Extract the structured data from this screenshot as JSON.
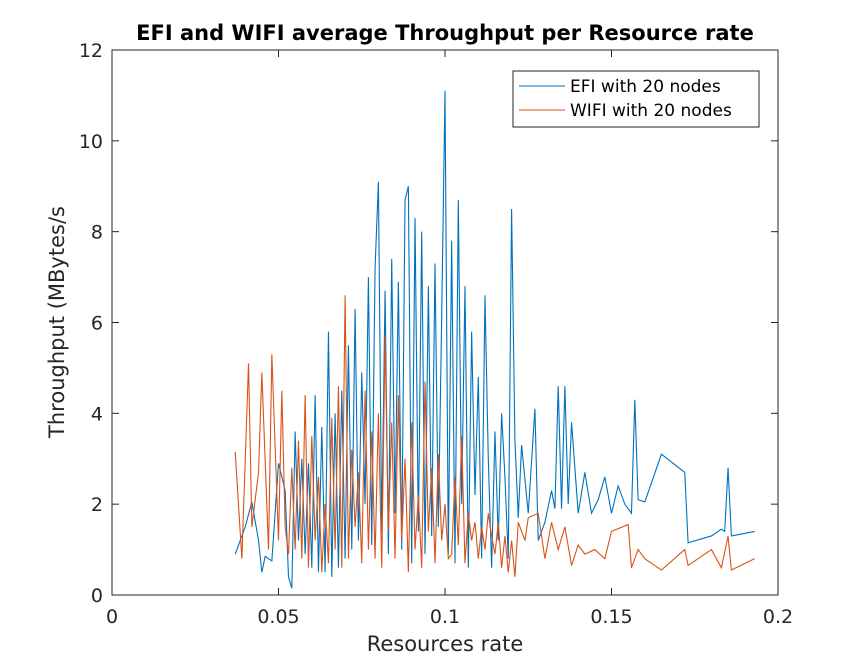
{
  "chart_data": {
    "type": "line",
    "title": "EFI and WIFI average Throughput per Resource rate",
    "xlabel": "Resources rate",
    "ylabel": "Throughput (MBytes/s",
    "xlim": [
      0,
      0.2
    ],
    "xticks": [
      0,
      0.05,
      0.1,
      0.15,
      0.2
    ],
    "ylim": [
      0,
      12
    ],
    "yticks": [
      0,
      2,
      4,
      6,
      8,
      10,
      12
    ],
    "grid": false,
    "legend": "northeast",
    "series": [
      {
        "name": "EFI with 20 nodes",
        "color": "#0072bd",
        "x": [
          0.037,
          0.04,
          0.042,
          0.044,
          0.045,
          0.046,
          0.048,
          0.05,
          0.052,
          0.053,
          0.054,
          0.055,
          0.056,
          0.057,
          0.058,
          0.059,
          0.06,
          0.061,
          0.062,
          0.063,
          0.064,
          0.065,
          0.066,
          0.067,
          0.068,
          0.069,
          0.07,
          0.071,
          0.072,
          0.073,
          0.074,
          0.075,
          0.076,
          0.077,
          0.078,
          0.079,
          0.08,
          0.081,
          0.082,
          0.083,
          0.084,
          0.085,
          0.086,
          0.087,
          0.088,
          0.089,
          0.09,
          0.091,
          0.092,
          0.093,
          0.094,
          0.095,
          0.096,
          0.097,
          0.098,
          0.099,
          0.1,
          0.101,
          0.102,
          0.103,
          0.104,
          0.105,
          0.106,
          0.107,
          0.108,
          0.109,
          0.11,
          0.111,
          0.112,
          0.113,
          0.114,
          0.115,
          0.116,
          0.117,
          0.118,
          0.119,
          0.12,
          0.121,
          0.122,
          0.123,
          0.125,
          0.127,
          0.128,
          0.13,
          0.132,
          0.133,
          0.134,
          0.135,
          0.136,
          0.137,
          0.138,
          0.14,
          0.142,
          0.144,
          0.146,
          0.148,
          0.15,
          0.152,
          0.154,
          0.156,
          0.157,
          0.158,
          0.16,
          0.165,
          0.172,
          0.173,
          0.18,
          0.183,
          0.184,
          0.185,
          0.186,
          0.193
        ],
        "values": [
          0.9,
          1.5,
          2.05,
          1.2,
          0.5,
          0.85,
          0.75,
          2.9,
          2.3,
          0.4,
          0.15,
          3.6,
          1.2,
          3.0,
          0.9,
          2.9,
          0.6,
          4.4,
          0.5,
          3.7,
          0.5,
          5.8,
          0.4,
          4.0,
          0.6,
          4.5,
          0.8,
          5.5,
          1.0,
          6.3,
          1.2,
          4.9,
          2.0,
          7.0,
          1.1,
          7.2,
          9.1,
          1.4,
          6.7,
          0.9,
          7.4,
          1.8,
          6.9,
          1.0,
          8.7,
          9.0,
          0.7,
          8.3,
          1.4,
          8.0,
          0.9,
          6.8,
          1.3,
          7.3,
          1.5,
          6.1,
          11.1,
          0.9,
          7.8,
          0.7,
          8.7,
          2.0,
          6.8,
          0.6,
          5.8,
          2.2,
          4.8,
          0.8,
          6.6,
          3.0,
          0.6,
          3.6,
          1.2,
          4.0,
          2.6,
          0.8,
          8.5,
          3.4,
          1.7,
          3.3,
          1.8,
          4.1,
          1.2,
          1.6,
          2.3,
          1.9,
          4.6,
          1.9,
          4.6,
          2.0,
          3.8,
          1.8,
          2.7,
          1.8,
          2.1,
          2.6,
          1.8,
          2.4,
          2.0,
          1.8,
          4.3,
          2.1,
          2.05,
          3.1,
          2.7,
          1.15,
          1.3,
          1.45,
          1.4,
          2.8,
          1.3,
          1.4
        ]
      },
      {
        "name": "WIFI with 20 nodes",
        "color": "#d95319",
        "x": [
          0.037,
          0.039,
          0.041,
          0.042,
          0.044,
          0.045,
          0.047,
          0.048,
          0.05,
          0.051,
          0.052,
          0.053,
          0.054,
          0.055,
          0.056,
          0.057,
          0.058,
          0.059,
          0.06,
          0.061,
          0.062,
          0.063,
          0.064,
          0.065,
          0.066,
          0.067,
          0.068,
          0.069,
          0.07,
          0.071,
          0.072,
          0.073,
          0.074,
          0.075,
          0.076,
          0.077,
          0.078,
          0.079,
          0.08,
          0.081,
          0.082,
          0.083,
          0.084,
          0.085,
          0.086,
          0.087,
          0.088,
          0.089,
          0.09,
          0.091,
          0.092,
          0.093,
          0.094,
          0.095,
          0.096,
          0.097,
          0.098,
          0.099,
          0.1,
          0.101,
          0.102,
          0.103,
          0.104,
          0.105,
          0.106,
          0.107,
          0.108,
          0.109,
          0.11,
          0.111,
          0.112,
          0.113,
          0.114,
          0.115,
          0.116,
          0.117,
          0.118,
          0.119,
          0.12,
          0.121,
          0.122,
          0.123,
          0.124,
          0.125,
          0.128,
          0.13,
          0.132,
          0.134,
          0.136,
          0.138,
          0.14,
          0.142,
          0.145,
          0.148,
          0.15,
          0.155,
          0.156,
          0.158,
          0.16,
          0.165,
          0.172,
          0.173,
          0.18,
          0.183,
          0.185,
          0.186,
          0.193
        ],
        "values": [
          3.15,
          0.8,
          5.1,
          1.5,
          2.7,
          4.9,
          1.0,
          5.3,
          1.2,
          4.5,
          1.5,
          0.9,
          2.8,
          1.0,
          3.4,
          0.8,
          4.4,
          0.6,
          3.5,
          1.2,
          2.6,
          0.5,
          2.0,
          0.7,
          3.9,
          1.0,
          4.6,
          0.6,
          6.6,
          0.8,
          3.2,
          1.5,
          2.7,
          0.7,
          4.5,
          1.0,
          3.6,
          0.8,
          4.0,
          0.6,
          5.7,
          1.4,
          3.8,
          0.8,
          4.4,
          1.2,
          3.0,
          0.5,
          3.8,
          1.0,
          2.2,
          0.6,
          4.7,
          1.4,
          2.8,
          0.7,
          3.1,
          1.2,
          2.0,
          0.8,
          0.9,
          2.6,
          1.1,
          3.5,
          0.7,
          1.8,
          1.2,
          1.6,
          0.8,
          1.5,
          1.0,
          1.8,
          1.3,
          0.9,
          1.6,
          0.6,
          1.3,
          0.5,
          1.2,
          0.4,
          1.6,
          1.4,
          1.2,
          1.7,
          1.8,
          0.8,
          1.6,
          1.0,
          1.5,
          0.65,
          1.1,
          0.9,
          1.0,
          0.8,
          1.4,
          1.55,
          0.6,
          1.0,
          0.8,
          0.55,
          1.0,
          0.65,
          1.0,
          0.6,
          1.3,
          0.55,
          0.8
        ]
      }
    ]
  }
}
